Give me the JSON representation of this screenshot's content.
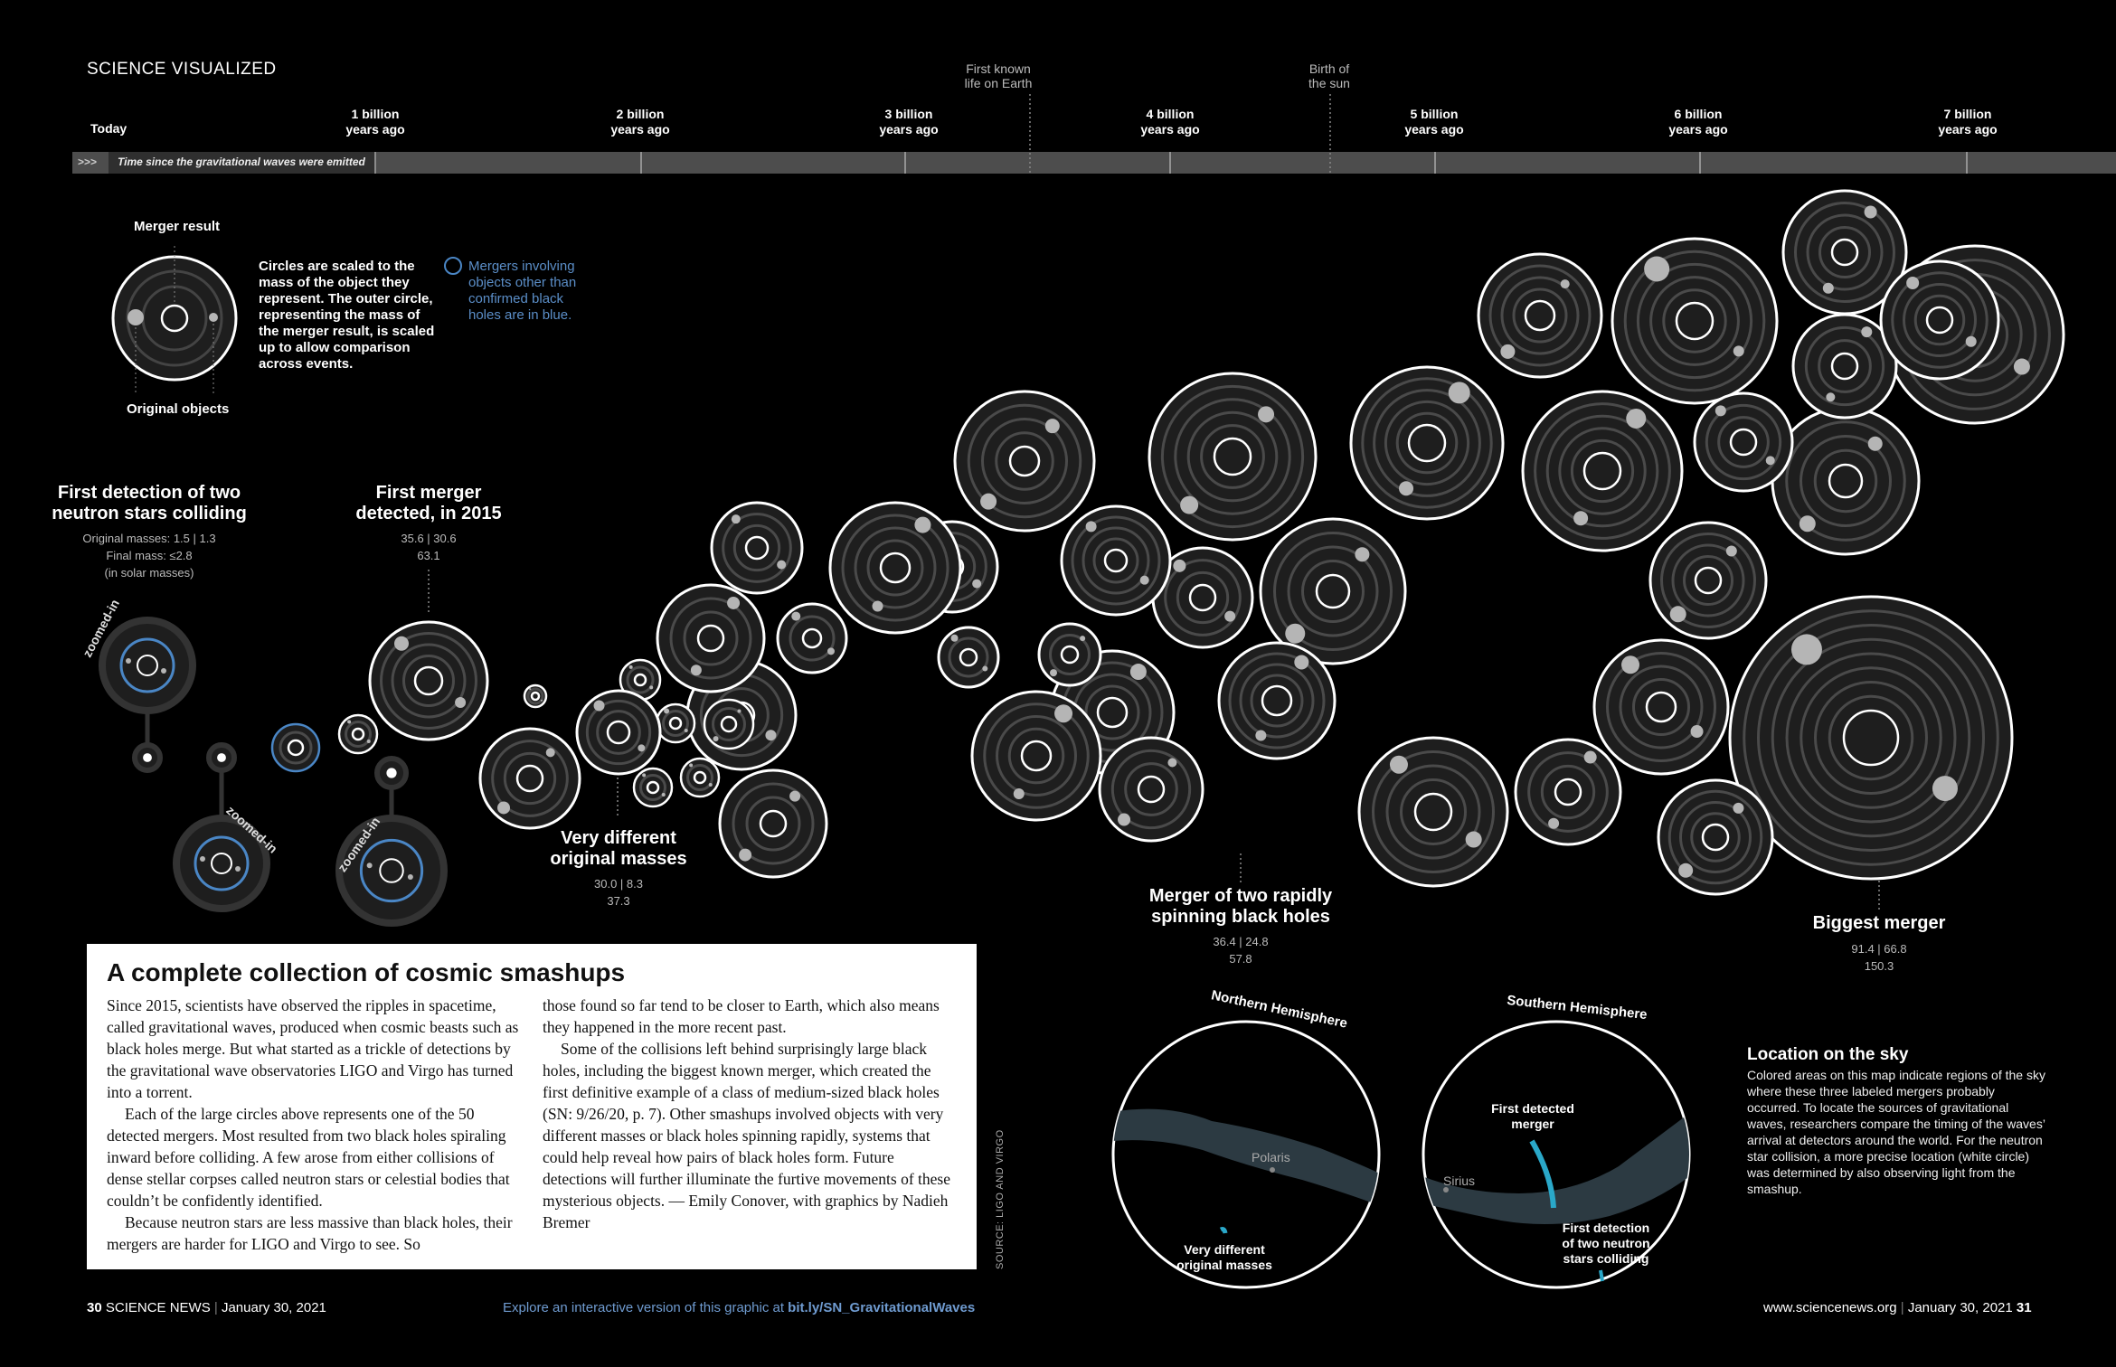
{
  "section_title": "SCIENCE VISUALIZED",
  "timeline": {
    "today": "Today",
    "ticks": [
      {
        "label": "1 billion\nyears ago"
      },
      {
        "label": "2 billion\nyears ago"
      },
      {
        "label": "3 billion\nyears ago"
      },
      {
        "label": "4 billion\nyears ago"
      },
      {
        "label": "5 billion\nyears ago"
      },
      {
        "label": "6 billion\nyears ago"
      },
      {
        "label": "7 billion\nyears ago"
      }
    ],
    "events": [
      {
        "label": "First known\nlife on Earth"
      },
      {
        "label": "Birth of\nthe sun"
      }
    ],
    "bar_arrows": ">>>",
    "bar_caption": "Time since the gravitational waves were emitted"
  },
  "legend": {
    "merger_result": "Merger result",
    "original_objects": "Original objects",
    "scaling_text": "Circles are scaled to the\nmass of the object they\nrepresent. The outer circle,\nrepresenting the mass of\nthe merger result, is scaled\nup to allow comparison\nacross events.",
    "blue_text": "Mergers involving\nobjects other than\nconfirmed black\nholes are in blue."
  },
  "annotations": {
    "neutron": {
      "title": "First detection of two\nneutron stars colliding",
      "sub": "Original masses: 1.5 | 1.3\nFinal mass: ≤2.8\n(in solar masses)"
    },
    "first_merger": {
      "title": "First merger\ndetected, in 2015",
      "sub": "35.6 | 30.6\n63.1"
    },
    "different": {
      "title": "Very different\noriginal masses",
      "sub": "30.0 | 8.3\n37.3"
    },
    "spinning": {
      "title": "Merger of two rapidly\nspinning black holes",
      "sub": "36.4 | 24.8\n57.8"
    },
    "biggest": {
      "title": "Biggest merger",
      "sub": "91.4 | 66.8\n150.3"
    },
    "zoomed": "zoomed-in"
  },
  "article": {
    "title": "A complete collection of cosmic smashups",
    "col1": [
      "Since 2015, scientists have observed the ripples in spacetime, called gravitational waves, produced when cosmic beasts such as black holes merge. But what started as a trickle of detections by the gravitational wave observatories LIGO and Virgo has turned into a torrent.",
      "Each of the large circles above represents one of the 50 detected mergers. Most resulted from two black holes spiraling inward before colliding. A few arose from either collisions of dense stellar corpses called neutron stars or celestial bodies that couldn’t be confidently identified.",
      "Because neutron stars are less massive than black holes, their mergers are harder for LIGO and Virgo to see. So"
    ],
    "col2": [
      "those found so far tend to be closer to Earth, which also means they happened in the more recent past.",
      "Some of the collisions left behind surprisingly large black holes, including the biggest known merger, which created the first definitive example of a class of medium-sized black holes (SN: 9/26/20, p. 7). Other smashups involved objects with very different masses or black holes spinning rapidly, systems that could help reveal how pairs of black holes form. Future detections will further illuminate the furtive movements of these mysterious objects. — Emily Conover, with graphics by Nadieh Bremer"
    ]
  },
  "source": "SOURCE: LIGO AND VIRGO",
  "sky": {
    "north_label": "Northern Hemisphere",
    "south_label": "Southern Hemisphere",
    "polaris": "Polaris",
    "sirius": "Sirius",
    "label_first_merger": "First detected\nmerger",
    "label_neutron": "First detection\nof two neutron\nstars colliding",
    "label_different": "Very different\noriginal masses",
    "title": "Location on the sky",
    "text": "Colored areas on this map indicate regions of the sky where these three labeled mergers probably occurred. To locate the sources of gravitational waves, researchers compare the timing of the waves’ arrival at detectors around the world. For the neutron star collision, a more precise location (white circle) was determined by also observing light from the smashup."
  },
  "footer": {
    "left_page": "30",
    "left_mag": "SCIENCE NEWS",
    "left_date": "January 30, 2021",
    "center_prefix": "Explore an interactive version of this graphic at ",
    "center_link": "bit.ly/SN_GravitationalWaves",
    "right_site": "www.sciencenews.org",
    "right_date": "January 30, 2021",
    "right_page": "31"
  },
  "colors": {
    "blue": "#4a86c5",
    "ring": "#ffffff",
    "inner": "#555555",
    "object": "#b5b5b5",
    "band": "#2c3a42"
  }
}
